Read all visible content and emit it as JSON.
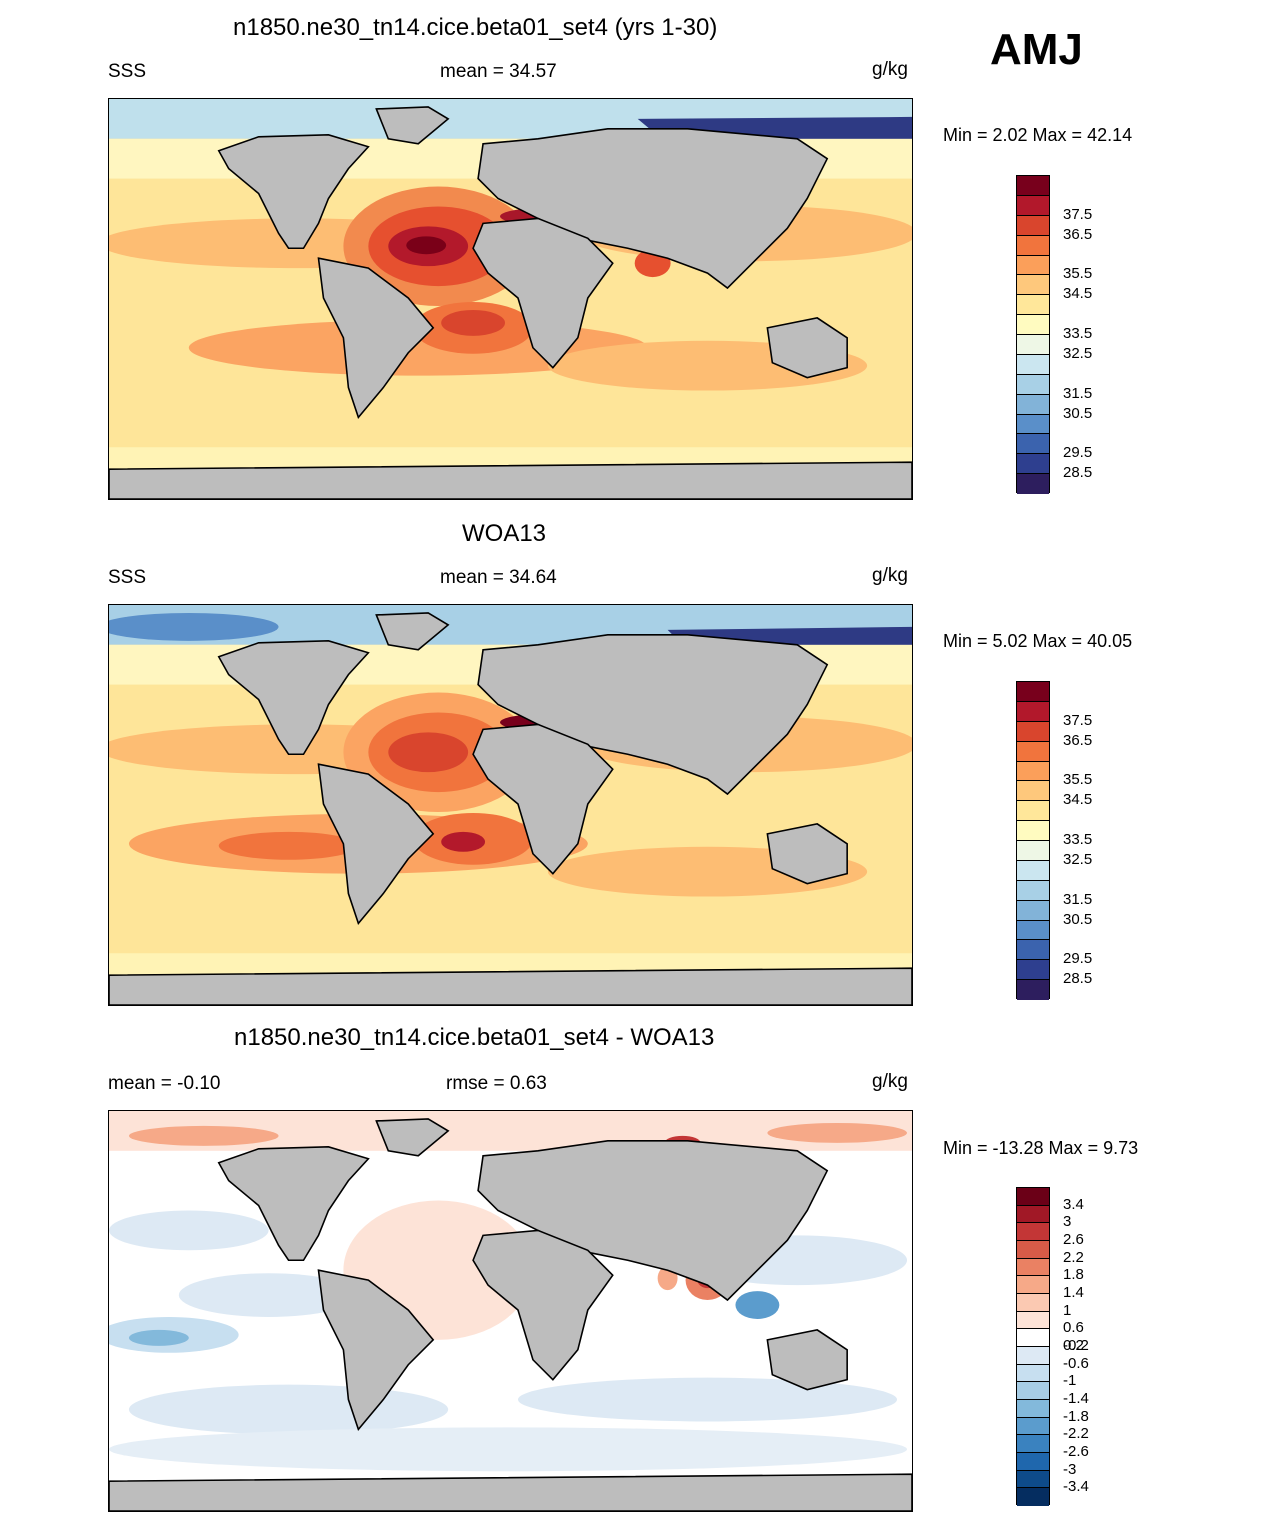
{
  "season": "AMJ",
  "colors": {
    "land": "#bdbdbd",
    "sal_scale": [
      "#2d1e5e",
      "#2e3f8f",
      "#3b63ae",
      "#5a8fc9",
      "#82b3d8",
      "#a8d0e6",
      "#cbe6f0",
      "#eef7e6",
      "#fffbc0",
      "#ffe79a",
      "#fec87c",
      "#fb9f5a",
      "#f1743d",
      "#d9452d",
      "#b2182b",
      "#78001c"
    ],
    "diff_scale": [
      "#052d60",
      "#0e4b8a",
      "#1f67ad",
      "#3a82bf",
      "#5b9ccd",
      "#83b9db",
      "#a7cde5",
      "#c7dff0",
      "#dde9f4",
      "#ffffff",
      "#fde3d7",
      "#fbc9b2",
      "#f6a988",
      "#ea8163",
      "#d75b48",
      "#c33636",
      "#a11826",
      "#6b0017"
    ]
  },
  "panels": [
    {
      "title": "n1850.ne30_tn14.cice.beta01_set4 (yrs 1-30)",
      "left_label": "SSS",
      "center_label": "mean =  34.57",
      "units": "g/kg",
      "minmax": "Min =   2.02 Max =  42.14",
      "kind": "model",
      "colorbar_labels": [
        "37.5",
        "36.5",
        "35.5",
        "34.5",
        "33.5",
        "32.5",
        "31.5",
        "30.5",
        "29.5",
        "28.5"
      ]
    },
    {
      "title": "WOA13",
      "left_label": "SSS",
      "center_label": "mean =  34.64",
      "units": "g/kg",
      "minmax": "Min =   5.02 Max =  40.05",
      "kind": "obs",
      "colorbar_labels": [
        "37.5",
        "36.5",
        "35.5",
        "34.5",
        "33.5",
        "32.5",
        "31.5",
        "30.5",
        "29.5",
        "28.5"
      ]
    },
    {
      "title": "n1850.ne30_tn14.cice.beta01_set4 - WOA13",
      "left_label": "mean =  -0.10",
      "center_label": "rmse =   0.63",
      "units": "g/kg",
      "minmax": "Min = -13.28 Max =   9.73",
      "kind": "diff",
      "colorbar_labels": [
        "3.4",
        "3",
        "2.6",
        "2.2",
        "1.8",
        "1.4",
        "1",
        "0.6",
        "0.2",
        "-0.2",
        "-0.6",
        "-1",
        "-1.4",
        "-1.8",
        "-2.2",
        "-2.6",
        "-3",
        "-3.4"
      ]
    }
  ]
}
